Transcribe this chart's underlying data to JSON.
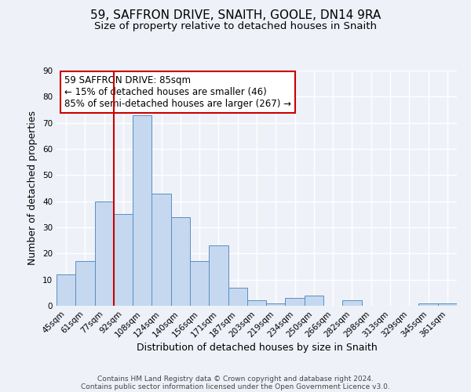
{
  "title": "59, SAFFRON DRIVE, SNAITH, GOOLE, DN14 9RA",
  "subtitle": "Size of property relative to detached houses in Snaith",
  "xlabel": "Distribution of detached houses by size in Snaith",
  "ylabel": "Number of detached properties",
  "bar_labels": [
    "45sqm",
    "61sqm",
    "77sqm",
    "92sqm",
    "108sqm",
    "124sqm",
    "140sqm",
    "156sqm",
    "171sqm",
    "187sqm",
    "203sqm",
    "219sqm",
    "234sqm",
    "250sqm",
    "266sqm",
    "282sqm",
    "298sqm",
    "313sqm",
    "329sqm",
    "345sqm",
    "361sqm"
  ],
  "bar_values": [
    12,
    17,
    40,
    35,
    73,
    43,
    34,
    17,
    23,
    7,
    2,
    1,
    3,
    4,
    0,
    2,
    0,
    0,
    0,
    1,
    1
  ],
  "bar_color": "#c5d8f0",
  "bar_edge_color": "#5a8fc0",
  "vline_x": 2.5,
  "vline_color": "#cc0000",
  "ylim": [
    0,
    90
  ],
  "yticks": [
    0,
    10,
    20,
    30,
    40,
    50,
    60,
    70,
    80,
    90
  ],
  "annotation_text": "59 SAFFRON DRIVE: 85sqm\n← 15% of detached houses are smaller (46)\n85% of semi-detached houses are larger (267) →",
  "annotation_box_color": "#ffffff",
  "annotation_box_edge": "#cc0000",
  "footnote1": "Contains HM Land Registry data © Crown copyright and database right 2024.",
  "footnote2": "Contains public sector information licensed under the Open Government Licence v3.0.",
  "background_color": "#eef2f8",
  "grid_color": "#ffffff",
  "title_fontsize": 11,
  "subtitle_fontsize": 9.5,
  "axis_label_fontsize": 9,
  "tick_fontsize": 7.5,
  "annotation_fontsize": 8.5,
  "footnote_fontsize": 6.5
}
